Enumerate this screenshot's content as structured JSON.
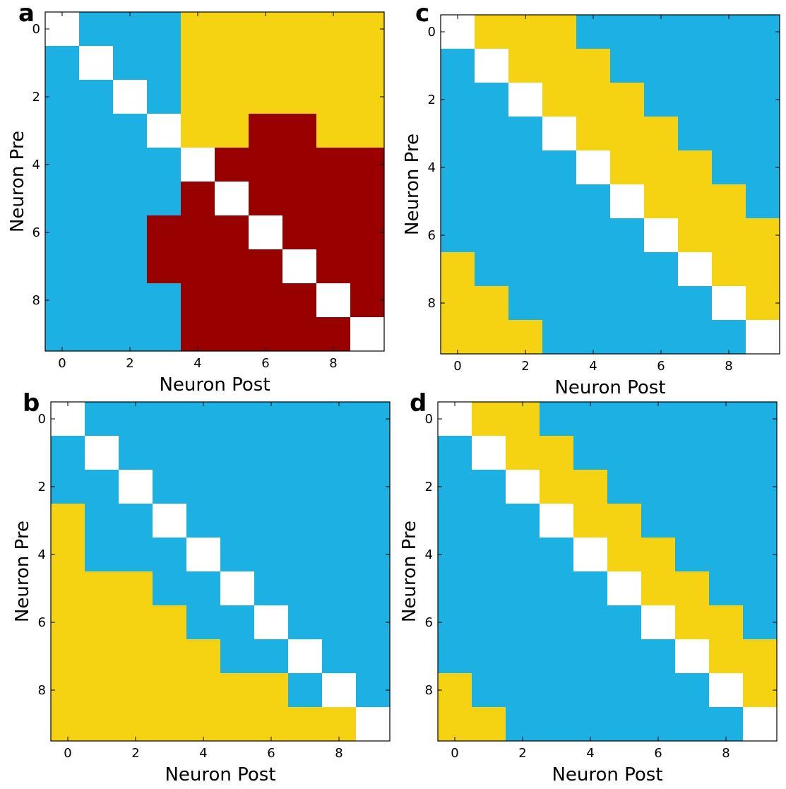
{
  "colors": {
    "0": "#ffffff",
    "1": "#1cb0e3",
    "2": "#f5d212",
    "3": "#990000"
  },
  "chart_data": [
    {
      "type": "heatmap",
      "panel_label": "a",
      "xlabel": "Neuron Post",
      "ylabel": "Neuron Pre",
      "x_ticks": [
        "0",
        "2",
        "4",
        "6",
        "8"
      ],
      "y_ticks": [
        "0",
        "2",
        "4",
        "6",
        "8"
      ],
      "legend": "none",
      "grid": false,
      "matrix": [
        [
          0,
          1,
          1,
          1,
          2,
          2,
          2,
          2,
          2,
          2
        ],
        [
          1,
          0,
          1,
          1,
          2,
          2,
          2,
          2,
          2,
          2
        ],
        [
          1,
          1,
          0,
          1,
          2,
          2,
          2,
          2,
          2,
          2
        ],
        [
          1,
          1,
          1,
          0,
          2,
          2,
          3,
          3,
          2,
          2
        ],
        [
          1,
          1,
          1,
          1,
          0,
          3,
          3,
          3,
          3,
          3
        ],
        [
          1,
          1,
          1,
          1,
          3,
          0,
          3,
          3,
          3,
          3
        ],
        [
          1,
          1,
          1,
          3,
          3,
          3,
          0,
          3,
          3,
          3
        ],
        [
          1,
          1,
          1,
          3,
          3,
          3,
          3,
          0,
          3,
          3
        ],
        [
          1,
          1,
          1,
          1,
          3,
          3,
          3,
          3,
          0,
          3
        ],
        [
          1,
          1,
          1,
          1,
          3,
          3,
          3,
          3,
          3,
          0
        ]
      ]
    },
    {
      "type": "heatmap",
      "panel_label": "c",
      "xlabel": "Neuron Post",
      "ylabel": "Neuron Pre",
      "x_ticks": [
        "0",
        "2",
        "4",
        "6",
        "8"
      ],
      "y_ticks": [
        "0",
        "2",
        "4",
        "6",
        "8"
      ],
      "legend": "none",
      "grid": false,
      "matrix": [
        [
          0,
          2,
          2,
          2,
          1,
          1,
          1,
          1,
          1,
          1
        ],
        [
          1,
          0,
          2,
          2,
          2,
          1,
          1,
          1,
          1,
          1
        ],
        [
          1,
          1,
          0,
          2,
          2,
          2,
          1,
          1,
          1,
          1
        ],
        [
          1,
          1,
          1,
          0,
          2,
          2,
          2,
          1,
          1,
          1
        ],
        [
          1,
          1,
          1,
          1,
          0,
          2,
          2,
          2,
          1,
          1
        ],
        [
          1,
          1,
          1,
          1,
          1,
          0,
          2,
          2,
          2,
          1
        ],
        [
          1,
          1,
          1,
          1,
          1,
          1,
          0,
          2,
          2,
          2
        ],
        [
          2,
          1,
          1,
          1,
          1,
          1,
          1,
          0,
          2,
          2
        ],
        [
          2,
          2,
          1,
          1,
          1,
          1,
          1,
          1,
          0,
          2
        ],
        [
          2,
          2,
          2,
          1,
          1,
          1,
          1,
          1,
          1,
          0
        ]
      ]
    },
    {
      "type": "heatmap",
      "panel_label": "b",
      "xlabel": "Neuron Post",
      "ylabel": "Neuron Pre",
      "x_ticks": [
        "0",
        "2",
        "4",
        "6",
        "8"
      ],
      "y_ticks": [
        "0",
        "2",
        "4",
        "6",
        "8"
      ],
      "legend": "none",
      "grid": false,
      "matrix": [
        [
          0,
          1,
          1,
          1,
          1,
          1,
          1,
          1,
          1,
          1
        ],
        [
          1,
          0,
          1,
          1,
          1,
          1,
          1,
          1,
          1,
          1
        ],
        [
          1,
          1,
          0,
          1,
          1,
          1,
          1,
          1,
          1,
          1
        ],
        [
          2,
          1,
          1,
          0,
          1,
          1,
          1,
          1,
          1,
          1
        ],
        [
          2,
          1,
          1,
          1,
          0,
          1,
          1,
          1,
          1,
          1
        ],
        [
          2,
          2,
          2,
          1,
          1,
          0,
          1,
          1,
          1,
          1
        ],
        [
          2,
          2,
          2,
          2,
          1,
          1,
          0,
          1,
          1,
          1
        ],
        [
          2,
          2,
          2,
          2,
          2,
          1,
          1,
          0,
          1,
          1
        ],
        [
          2,
          2,
          2,
          2,
          2,
          2,
          2,
          1,
          0,
          1
        ],
        [
          2,
          2,
          2,
          2,
          2,
          2,
          2,
          2,
          2,
          0
        ]
      ]
    },
    {
      "type": "heatmap",
      "panel_label": "d",
      "xlabel": "Neuron Post",
      "ylabel": "Neuron Pre",
      "x_ticks": [
        "0",
        "2",
        "4",
        "6",
        "8"
      ],
      "y_ticks": [
        "0",
        "2",
        "4",
        "6",
        "8"
      ],
      "legend": "none",
      "grid": false,
      "matrix": [
        [
          0,
          2,
          2,
          1,
          1,
          1,
          1,
          1,
          1,
          1
        ],
        [
          1,
          0,
          2,
          2,
          1,
          1,
          1,
          1,
          1,
          1
        ],
        [
          1,
          1,
          0,
          2,
          2,
          1,
          1,
          1,
          1,
          1
        ],
        [
          1,
          1,
          1,
          0,
          2,
          2,
          1,
          1,
          1,
          1
        ],
        [
          1,
          1,
          1,
          1,
          0,
          2,
          2,
          1,
          1,
          1
        ],
        [
          1,
          1,
          1,
          1,
          1,
          0,
          2,
          2,
          1,
          1
        ],
        [
          1,
          1,
          1,
          1,
          1,
          1,
          0,
          2,
          2,
          1
        ],
        [
          1,
          1,
          1,
          1,
          1,
          1,
          1,
          0,
          2,
          2
        ],
        [
          2,
          1,
          1,
          1,
          1,
          1,
          1,
          1,
          0,
          2
        ],
        [
          2,
          2,
          1,
          1,
          1,
          1,
          1,
          1,
          1,
          0
        ]
      ]
    }
  ]
}
